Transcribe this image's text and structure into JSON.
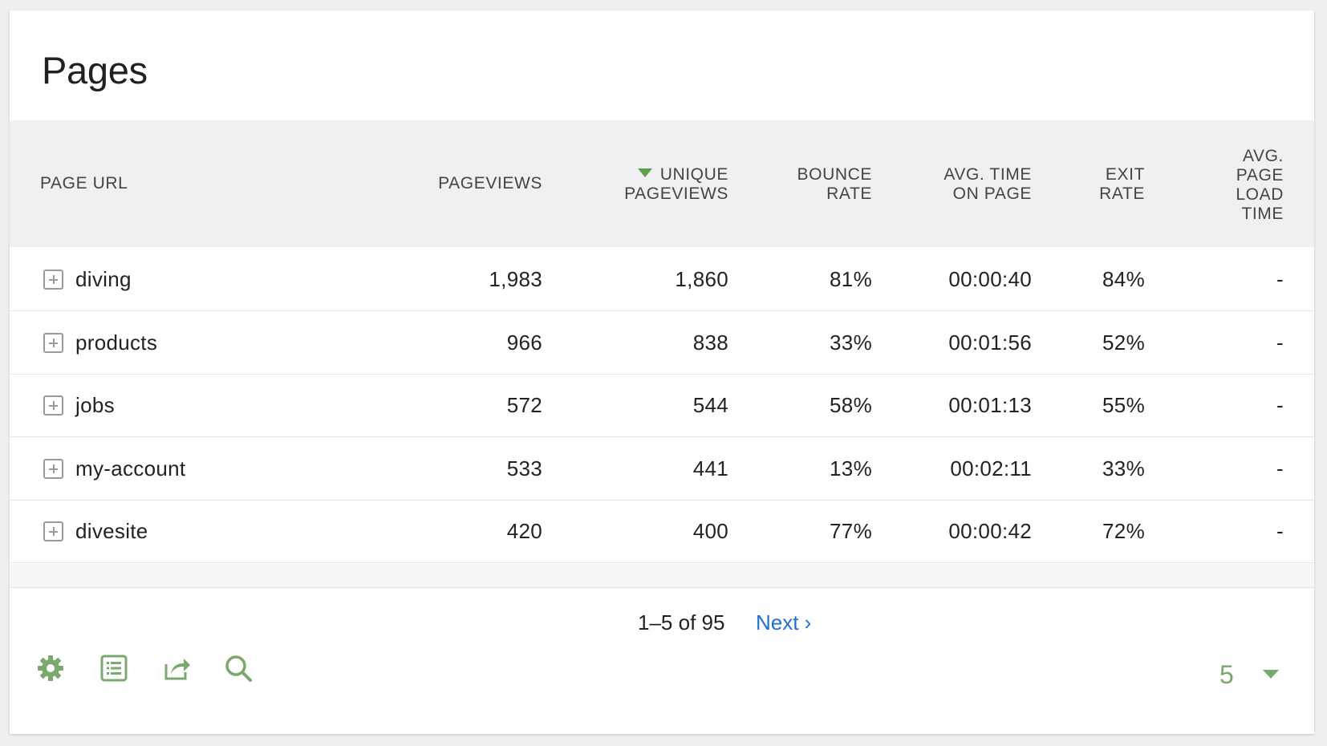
{
  "card": {
    "title": "Pages"
  },
  "table": {
    "columns": [
      {
        "key": "url",
        "label": "PAGE URL"
      },
      {
        "key": "pageviews",
        "label": "PAGEVIEWS"
      },
      {
        "key": "unique",
        "label": "UNIQUE\nPAGEVIEWS",
        "sorted": "desc"
      },
      {
        "key": "bounce",
        "label": "BOUNCE\nRATE"
      },
      {
        "key": "avgtime",
        "label": "AVG. TIME\nON PAGE"
      },
      {
        "key": "exit",
        "label": "EXIT\nRATE"
      },
      {
        "key": "load",
        "label": "AVG.\nPAGE\nLOAD\nTIME"
      }
    ],
    "rows": [
      {
        "url": "diving",
        "pageviews": "1,983",
        "unique": "1,860",
        "bounce": "81%",
        "avgtime": "00:00:40",
        "exit": "84%",
        "load": "-"
      },
      {
        "url": "products",
        "pageviews": "966",
        "unique": "838",
        "bounce": "33%",
        "avgtime": "00:01:56",
        "exit": "52%",
        "load": "-"
      },
      {
        "url": "jobs",
        "pageviews": "572",
        "unique": "544",
        "bounce": "58%",
        "avgtime": "00:01:13",
        "exit": "55%",
        "load": "-"
      },
      {
        "url": "my-account",
        "pageviews": "533",
        "unique": "441",
        "bounce": "13%",
        "avgtime": "00:02:11",
        "exit": "33%",
        "load": "-"
      },
      {
        "url": "divesite",
        "pageviews": "420",
        "unique": "400",
        "bounce": "77%",
        "avgtime": "00:00:42",
        "exit": "72%",
        "load": "-"
      }
    ]
  },
  "pagination": {
    "range": "1–5 of 95",
    "next_label": "Next ›"
  },
  "footer": {
    "icons": [
      "gear-icon",
      "table-view-icon",
      "export-icon",
      "search-icon"
    ],
    "limit_value": "5"
  },
  "colors": {
    "accent": "#5ba14d",
    "icon": "#7ba86f",
    "link": "#1f6fd1"
  }
}
